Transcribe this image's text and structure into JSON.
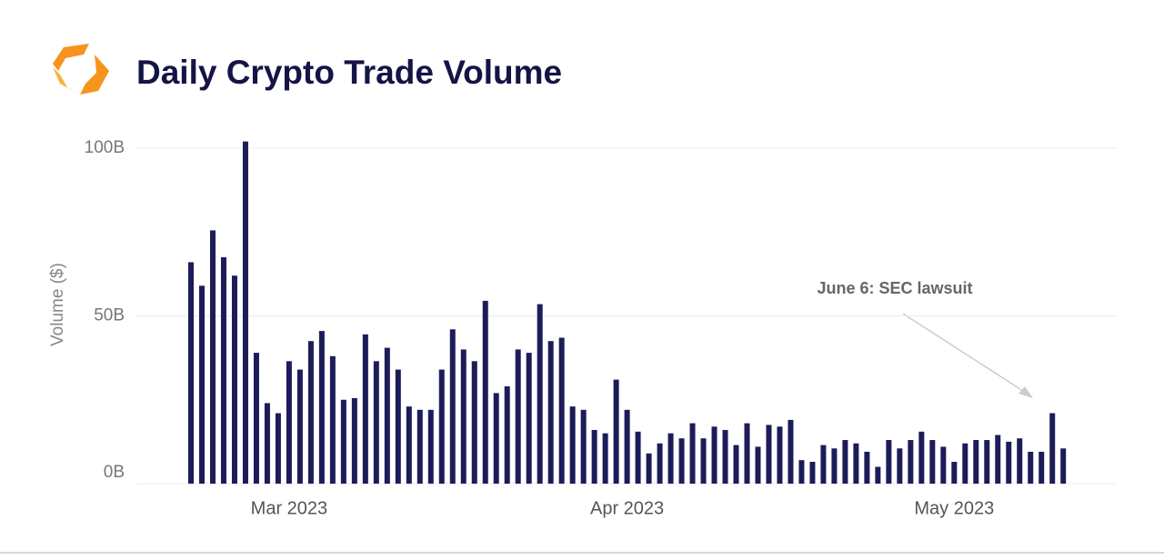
{
  "chart_data": {
    "type": "bar",
    "title": "Daily Crypto Trade Volume",
    "y_label": "Volume ($)",
    "annotation": "June 6: SEC lawsuit",
    "categories": [
      null,
      null,
      null,
      null,
      null,
      null,
      null,
      null,
      null,
      "Mar 2023",
      null,
      null,
      null,
      null,
      null,
      null,
      null,
      null,
      null,
      null,
      null,
      null,
      null,
      null,
      null,
      null,
      null,
      null,
      null,
      null,
      null,
      null,
      null,
      null,
      null,
      null,
      null,
      null,
      null,
      null,
      "Apr 2023",
      null,
      null,
      null,
      null,
      null,
      null,
      null,
      null,
      null,
      null,
      null,
      null,
      null,
      null,
      null,
      null,
      null,
      null,
      null,
      null,
      null,
      null,
      null,
      null,
      null,
      null,
      null,
      null,
      null,
      "May 2023",
      null,
      null,
      null,
      null,
      null,
      null,
      null,
      null,
      null,
      null
    ],
    "values": [
      66,
      59,
      75.5,
      67.5,
      62,
      102,
      39,
      24,
      21,
      36.5,
      34,
      42.5,
      45.5,
      38,
      25,
      25.5,
      44.5,
      36.5,
      40.5,
      34,
      23,
      22,
      22,
      34,
      46,
      40,
      36.5,
      54.5,
      27,
      29,
      40,
      39,
      53.5,
      42.5,
      43.5,
      23,
      22,
      16,
      15,
      31,
      22,
      15.5,
      9,
      12,
      15,
      13.5,
      18,
      13.5,
      17,
      16,
      11.5,
      18,
      11,
      17.5,
      17,
      19,
      7,
      6.5,
      11.5,
      10.5,
      13,
      12,
      9.5,
      5,
      13,
      10.5,
      13,
      15.5,
      13,
      11,
      6.5,
      12,
      13,
      13,
      14.5,
      12.5,
      13.5,
      9.5,
      9.5,
      21,
      10.5
    ],
    "color": "#1c1c5a",
    "ylim": [
      0,
      105
    ],
    "yticks": [
      {
        "value": 0,
        "label": "0B"
      },
      {
        "value": 50,
        "label": "50B"
      },
      {
        "value": 100,
        "label": "100B"
      }
    ],
    "grid": true
  }
}
